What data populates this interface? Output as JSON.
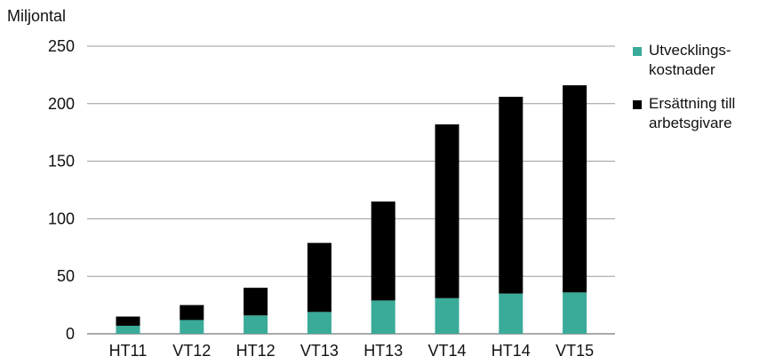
{
  "chart_data": {
    "type": "bar",
    "stacked": true,
    "y_unit_label": "Miljontal",
    "categories": [
      "HT11",
      "VT12",
      "HT12",
      "VT13",
      "HT13",
      "VT14",
      "HT14",
      "VT15"
    ],
    "series": [
      {
        "name": "Utvecklings-\nkostnader",
        "color": "#3aaa99",
        "values": [
          7,
          12,
          16,
          19,
          29,
          31,
          35,
          36
        ]
      },
      {
        "name": "Ersättning till\narbetsgivare",
        "color": "#000000",
        "values": [
          8,
          13,
          24,
          60,
          86,
          151,
          171,
          180
        ]
      }
    ],
    "yticks": [
      0,
      50,
      100,
      150,
      200,
      250
    ],
    "ylim": [
      0,
      250
    ],
    "grid": true,
    "legend_position": "right"
  }
}
